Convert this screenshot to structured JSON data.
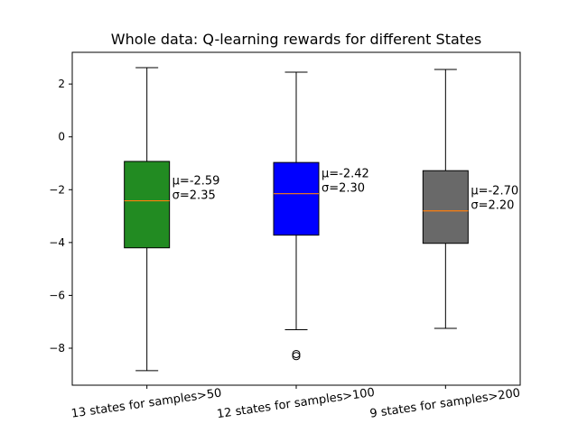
{
  "chart_data": {
    "type": "box",
    "title": "Whole data: Q-learning rewards for different States",
    "xlabel": "",
    "ylabel": "",
    "ylim": [
      -9.4,
      3.2
    ],
    "yticks": [
      2,
      0,
      -2,
      -4,
      -6,
      -8
    ],
    "grid": false,
    "boxes": [
      {
        "label": "13 states for samples>50",
        "color": "#228b22",
        "whisker_low": -8.85,
        "q1": -4.2,
        "median": -2.42,
        "q3": -0.93,
        "whisker_high": 2.62,
        "outliers": [],
        "annotation": [
          "μ=-2.59",
          "σ=2.35"
        ]
      },
      {
        "label": "12 states for samples>100",
        "color": "#0000ff",
        "whisker_low": -7.3,
        "q1": -3.72,
        "median": -2.15,
        "q3": -0.97,
        "whisker_high": 2.45,
        "outliers": [
          -8.22,
          -8.3
        ],
        "annotation": [
          "μ=-2.42",
          "σ=2.30"
        ]
      },
      {
        "label": "9 states for samples>200",
        "color": "#696969",
        "whisker_low": -7.25,
        "q1": -4.03,
        "median": -2.8,
        "q3": -1.28,
        "whisker_high": 2.55,
        "outliers": [],
        "annotation": [
          "μ=-2.70",
          "σ=2.20"
        ]
      }
    ],
    "median_color": "#ff7f0e"
  }
}
